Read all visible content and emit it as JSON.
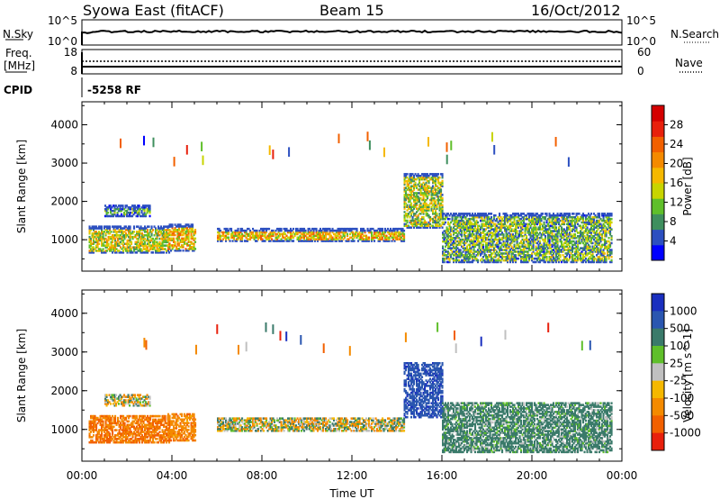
{
  "header": {
    "station": "Syowa East (fitACF)",
    "beam": "Beam 15",
    "date": "16/Oct/2012"
  },
  "panels": {
    "nsky_label": "N.Sky",
    "nsearch_label": "N.Search",
    "freq_label_1": "Freq.",
    "freq_label_2": "[MHz]",
    "nave_label": "Nave",
    "cpid_label": "CPID",
    "cpid_value": "-5258 RF",
    "noise_ticks_left": [
      "10^5",
      "10^0"
    ],
    "noise_ticks_right": [
      "10^5",
      "10^0"
    ],
    "freq_ticks": [
      "18",
      "8"
    ],
    "nave_ticks": [
      "60",
      "0"
    ]
  },
  "chart_data": [
    {
      "type": "heatmap",
      "title": "",
      "xlabel": "Time UT",
      "ylabel": "Slant Range [km]",
      "xlim": [
        "00:00",
        "24:00"
      ],
      "ylim": [
        180,
        4600
      ],
      "x_ticks": [
        "00:00",
        "04:00",
        "08:00",
        "12:00",
        "16:00",
        "20:00",
        "00:00"
      ],
      "y_ticks": [
        1000,
        2000,
        3000,
        4000
      ],
      "colorbar": {
        "label": "Power [dB]",
        "ticks": [
          "4",
          "8",
          "12",
          "16",
          "20",
          "24",
          "28"
        ],
        "colors": [
          "#0000ff",
          "#2c4fc0",
          "#3f8f5e",
          "#5fbf2a",
          "#c8d400",
          "#f5b800",
          "#f48a00",
          "#f26000",
          "#e8200c",
          "#d40000"
        ]
      },
      "regions": [
        {
          "t0": 0.3,
          "t1": 3.9,
          "r0": 650,
          "r1": 1350,
          "level": 0.45
        },
        {
          "t0": 1.0,
          "t1": 3.0,
          "r0": 1600,
          "r1": 1900,
          "level": 0.25
        },
        {
          "t0": 3.8,
          "t1": 5.0,
          "r0": 700,
          "r1": 1400,
          "level": 0.55
        },
        {
          "t0": 6.0,
          "t1": 14.3,
          "r0": 950,
          "r1": 1300,
          "level": 0.55
        },
        {
          "t0": 14.3,
          "t1": 16.0,
          "r0": 1300,
          "r1": 2700,
          "level": 0.4
        },
        {
          "t0": 16.0,
          "t1": 23.5,
          "r0": 400,
          "r1": 1700,
          "level": 0.3
        }
      ]
    },
    {
      "type": "heatmap",
      "title": "",
      "xlabel": "Time UT",
      "ylabel": "Slant Range [km]",
      "xlim": [
        "00:00",
        "24:00"
      ],
      "ylim": [
        180,
        4600
      ],
      "x_ticks": [
        "00:00",
        "04:00",
        "08:00",
        "12:00",
        "16:00",
        "20:00",
        "00:00"
      ],
      "y_ticks": [
        1000,
        2000,
        3000,
        4000
      ],
      "colorbar": {
        "label": "Velocity [m s^-1]",
        "ticks": [
          "1000",
          "500",
          "100",
          "25",
          "-25",
          "-100",
          "-500",
          "-1000"
        ],
        "colors": [
          "#1a2fbf",
          "#2a56b0",
          "#3a7a6a",
          "#5fbf2a",
          "#c0c0c0",
          "#f5b800",
          "#f48a00",
          "#f26000",
          "#e8200c"
        ]
      },
      "regions": [
        {
          "t0": 0.3,
          "t1": 3.9,
          "r0": 650,
          "r1": 1350,
          "level": -300
        },
        {
          "t0": 1.0,
          "t1": 3.0,
          "r0": 1600,
          "r1": 1900,
          "level": 0
        },
        {
          "t0": 3.8,
          "t1": 5.0,
          "r0": 700,
          "r1": 1400,
          "level": -200
        },
        {
          "t0": 6.0,
          "t1": 14.3,
          "r0": 950,
          "r1": 1300,
          "level": 0
        },
        {
          "t0": 14.3,
          "t1": 16.0,
          "r0": 1300,
          "r1": 2700,
          "level": 600
        },
        {
          "t0": 16.0,
          "t1": 23.5,
          "r0": 400,
          "r1": 1700,
          "level": 150
        }
      ]
    }
  ]
}
